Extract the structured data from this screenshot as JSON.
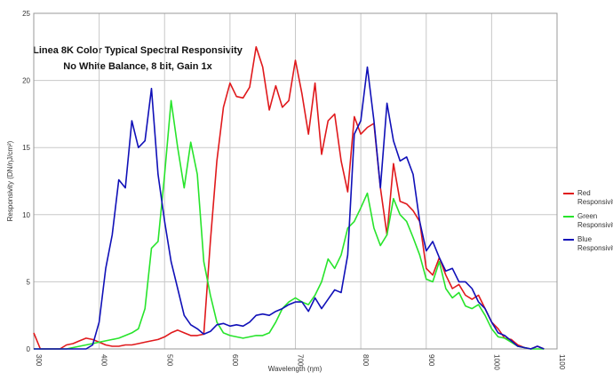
{
  "chart_data": {
    "type": "line",
    "title": [
      "Linea 8K Color Typical Spectral Responsivity",
      "No White Balance, 8 bit, Gain 1x"
    ],
    "xlabel": "Wavelength (ηm)",
    "ylabel": "Responsivity (DN/ηJ/cm²)",
    "xlim": [
      300,
      1100
    ],
    "xticks": [
      300,
      400,
      500,
      600,
      700,
      800,
      900,
      1000,
      1100
    ],
    "ylim": [
      0,
      25
    ],
    "yticks": [
      0,
      5,
      10,
      15,
      20,
      25
    ],
    "grid": true,
    "legend": "right",
    "x": [
      300,
      310,
      320,
      330,
      340,
      350,
      360,
      370,
      380,
      390,
      400,
      410,
      420,
      430,
      440,
      450,
      460,
      470,
      480,
      490,
      500,
      510,
      520,
      530,
      540,
      550,
      560,
      570,
      580,
      590,
      600,
      610,
      620,
      630,
      640,
      650,
      660,
      670,
      680,
      690,
      700,
      710,
      720,
      730,
      740,
      750,
      760,
      770,
      780,
      790,
      800,
      810,
      820,
      830,
      840,
      850,
      860,
      870,
      880,
      890,
      900,
      910,
      920,
      930,
      940,
      950,
      960,
      970,
      980,
      990,
      1000,
      1010,
      1020,
      1030,
      1040,
      1050,
      1060,
      1070,
      1080
    ],
    "series": [
      {
        "name": "Red Responsivity",
        "color": "#e0191c",
        "values": [
          1.2,
          0,
          0,
          0,
          0,
          0.3,
          0.4,
          0.6,
          0.8,
          0.7,
          0.5,
          0.3,
          0.2,
          0.2,
          0.3,
          0.3,
          0.4,
          0.5,
          0.6,
          0.7,
          0.9,
          1.2,
          1.4,
          1.2,
          1.0,
          1.0,
          1.1,
          8,
          14,
          18,
          19.8,
          18.8,
          18.7,
          19.5,
          22.5,
          21,
          17.8,
          19.6,
          18,
          18.5,
          21.5,
          19,
          16,
          19.8,
          14.5,
          17,
          17.5,
          14,
          11.7,
          17.3,
          16,
          16.5,
          16.8,
          12,
          8.5,
          13.8,
          11,
          10.8,
          10.3,
          9.5,
          6,
          5.5,
          6.8,
          5.5,
          4.5,
          4.8,
          4,
          3.7,
          4,
          3,
          2,
          1.5,
          0.8,
          0.7,
          0.3,
          0.1,
          0,
          0.2,
          0
        ]
      },
      {
        "name": "Green Responsivity",
        "color": "#27e42b",
        "values": [
          0,
          0,
          0,
          0,
          0,
          0,
          0.1,
          0.2,
          0.3,
          0.4,
          0.5,
          0.6,
          0.7,
          0.8,
          1.0,
          1.2,
          1.5,
          3,
          7.5,
          8,
          13,
          18.5,
          15,
          12,
          15.4,
          13,
          6.5,
          4,
          2,
          1.2,
          1.0,
          0.9,
          0.8,
          0.9,
          1,
          1,
          1.2,
          2,
          3,
          3.5,
          3.8,
          3.5,
          3.3,
          4,
          5,
          6.7,
          6,
          7,
          9,
          9.5,
          10.5,
          11.6,
          9,
          7.7,
          8.5,
          11.2,
          10,
          9.5,
          8.3,
          7,
          5.2,
          5,
          6.5,
          4.5,
          3.8,
          4.2,
          3.2,
          3,
          3.3,
          2.5,
          1.5,
          0.9,
          0.8,
          0.5,
          0.2,
          0.1,
          0,
          0,
          0
        ]
      },
      {
        "name": "Blue Responsivity",
        "color": "#1010b8",
        "values": [
          0,
          0,
          0,
          0,
          0,
          0,
          0,
          0,
          0,
          0.3,
          2,
          6,
          8.5,
          12.6,
          12,
          17,
          15,
          15.5,
          19.4,
          13,
          9.5,
          6.5,
          4.5,
          2.5,
          1.8,
          1.5,
          1.1,
          1.3,
          1.8,
          1.9,
          1.7,
          1.8,
          1.7,
          2,
          2.5,
          2.6,
          2.5,
          2.8,
          3.0,
          3.3,
          3.5,
          3.5,
          2.8,
          3.8,
          3.0,
          3.7,
          4.4,
          4.2,
          7,
          16,
          17,
          21,
          17,
          12,
          18.3,
          15.5,
          14,
          14.3,
          13,
          9.5,
          7.3,
          8,
          6.8,
          5.8,
          6,
          5,
          5,
          4.5,
          3.5,
          3,
          2,
          1.2,
          1.0,
          0.6,
          0.2,
          0.1,
          0,
          0.2,
          0
        ]
      }
    ]
  }
}
